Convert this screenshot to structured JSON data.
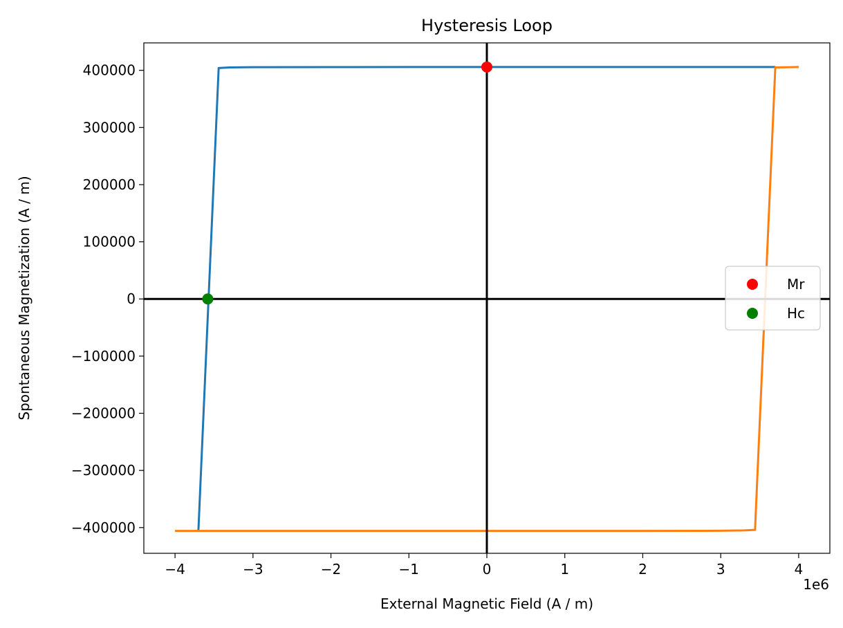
{
  "chart_data": {
    "type": "line",
    "title": "Hysteresis Loop",
    "xlabel": "External Magnetic Field (A / m)",
    "ylabel": "Spontaneous Magnetization (A / m)",
    "x_offset_label": "1e6",
    "xlim": [
      -4.4,
      4.4
    ],
    "ylim": [
      -445000,
      448000
    ],
    "x_ticks": [
      -4,
      -3,
      -2,
      -1,
      0,
      1,
      2,
      3,
      4
    ],
    "x_tick_labels": [
      "−4",
      "−3",
      "−2",
      "−1",
      "0",
      "1",
      "2",
      "3",
      "4"
    ],
    "y_ticks": [
      -400000,
      -300000,
      -200000,
      -100000,
      0,
      100000,
      200000,
      300000,
      400000
    ],
    "y_tick_labels": [
      "−400000",
      "−300000",
      "−200000",
      "−100000",
      "0",
      "100000",
      "200000",
      "300000",
      "400000"
    ],
    "grid": false,
    "legend_position": "center-right",
    "reference_lines": {
      "x": 0,
      "y": 0,
      "color": "#000000"
    },
    "series": [
      {
        "color": "#1f77b4",
        "x": [
          -3.7,
          -3.44,
          -3.3,
          -3.0,
          -2.0,
          -1.0,
          0,
          1.0,
          2.0,
          3.0,
          3.7
        ],
        "y": [
          -405000,
          404000,
          405000,
          405500,
          405700,
          405800,
          405800,
          405800,
          405800,
          405800,
          405800
        ]
      },
      {
        "color": "#ff7f0e",
        "x": [
          -4.0,
          -3.0,
          -2.0,
          -1.0,
          0,
          1.0,
          2.0,
          3.0,
          3.3,
          3.44,
          3.7,
          4.0
        ],
        "y": [
          -405800,
          -405800,
          -405800,
          -405800,
          -405800,
          -405800,
          -405800,
          -405500,
          -405000,
          -404000,
          405000,
          405800
        ]
      }
    ],
    "markers": [
      {
        "name": "Mr",
        "x": 0,
        "y": 405800,
        "color": "#ff0000"
      },
      {
        "name": "Hc",
        "x": -3.58,
        "y": 0,
        "color": "#008000"
      }
    ]
  }
}
